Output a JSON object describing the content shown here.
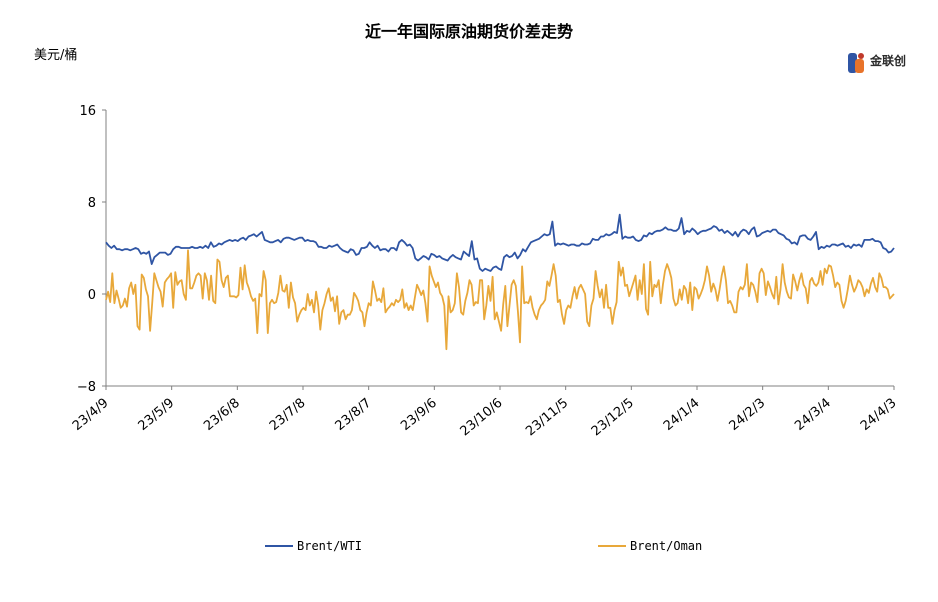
{
  "title": "近一年国际原油期货价差走势",
  "unit": "美元/桶",
  "logo": {
    "name": "金联创"
  },
  "chart_data": {
    "type": "line",
    "title": "近一年国际原油期货价差走势",
    "ylabel": "美元/桶",
    "ylim": [
      -8,
      16
    ],
    "yticks": [
      -8,
      0,
      8,
      16
    ],
    "xticks": [
      "23/4/9",
      "23/5/9",
      "23/6/8",
      "23/7/8",
      "23/8/7",
      "23/9/6",
      "23/10/6",
      "23/11/5",
      "23/12/5",
      "24/1/4",
      "24/2/3",
      "24/3/4",
      "24/4/3"
    ],
    "legend_position": "bottom",
    "grid": false,
    "series": [
      {
        "name": "Brent/WTI",
        "color": "#2f55a4",
        "values": [
          4.5,
          4.2,
          4.0,
          4.2,
          3.9,
          3.9,
          3.8,
          3.9,
          3.9,
          3.8,
          3.9,
          4.0,
          3.9,
          3.5,
          3.6,
          3.5,
          3.7,
          2.6,
          3.2,
          3.4,
          3.6,
          3.6,
          3.6,
          3.4,
          3.5,
          3.9,
          4.1,
          4.1,
          4.0,
          4.0,
          4.0,
          4.0,
          4.1,
          4.0,
          4.0,
          4.1,
          4.0,
          4.2,
          4.0,
          4.5,
          4.1,
          4.2,
          4.4,
          4.3,
          4.5,
          4.6,
          4.7,
          4.6,
          4.7,
          4.6,
          4.8,
          4.9,
          4.7,
          5.0,
          5.1,
          5.2,
          5.0,
          5.2,
          5.4,
          4.7,
          4.6,
          4.5,
          4.5,
          4.6,
          4.7,
          4.5,
          4.8,
          4.9,
          4.9,
          4.8,
          4.7,
          4.8,
          4.9,
          4.9,
          4.6,
          4.7,
          4.6,
          4.6,
          4.5,
          4.1,
          4.1,
          4.0,
          4.0,
          4.2,
          4.1,
          4.2,
          4.3,
          4.0,
          3.8,
          3.7,
          3.6,
          3.9,
          3.8,
          3.4,
          3.5,
          4.0,
          4.0,
          4.1,
          4.5,
          4.2,
          4.0,
          4.2,
          3.8,
          3.9,
          3.9,
          3.7,
          4.0,
          4.0,
          3.8,
          4.5,
          4.7,
          4.5,
          4.2,
          4.3,
          4.0,
          3.1,
          2.9,
          3.1,
          3.3,
          3.2,
          3.0,
          3.5,
          3.4,
          3.2,
          3.3,
          3.1,
          3.0,
          2.9,
          3.2,
          3.4,
          3.2,
          3.1,
          3.0,
          3.7,
          3.5,
          3.3,
          4.6,
          3.0,
          3.1,
          2.2,
          2.0,
          2.2,
          2.1,
          2.0,
          2.3,
          2.4,
          2.2,
          2.1,
          3.2,
          3.4,
          3.2,
          3.3,
          3.6,
          3.1,
          3.4,
          3.9,
          3.7,
          4.1,
          4.5,
          4.6,
          4.7,
          4.8,
          5.0,
          5.2,
          5.1,
          5.2,
          6.3,
          4.2,
          4.4,
          4.3,
          4.4,
          4.3,
          4.2,
          4.3,
          4.3,
          4.2,
          4.2,
          4.4,
          4.3,
          4.3,
          4.4,
          4.8,
          4.7,
          4.7,
          5.0,
          5.0,
          5.2,
          5.1,
          5.2,
          5.4,
          5.3,
          6.9,
          4.8,
          5.0,
          4.9,
          4.9,
          5.0,
          4.7,
          4.6,
          4.7,
          5.1,
          5.0,
          5.3,
          5.2,
          5.4,
          5.5,
          5.5,
          5.6,
          5.8,
          5.6,
          5.6,
          5.5,
          5.5,
          5.7,
          6.6,
          5.2,
          5.5,
          5.4,
          5.7,
          5.5,
          5.2,
          5.4,
          5.5,
          5.5,
          5.6,
          5.7,
          5.9,
          5.8,
          5.5,
          5.6,
          5.3,
          5.5,
          5.3,
          5.1,
          5.4,
          5.0,
          5.4,
          5.6,
          5.5,
          5.2,
          5.6,
          5.8,
          5.0,
          5.1,
          5.3,
          5.4,
          5.5,
          5.4,
          5.6,
          5.6,
          5.3,
          5.2,
          5.1,
          4.8,
          4.7,
          4.4,
          4.5,
          4.3,
          5.0,
          5.1,
          5.1,
          4.8,
          4.7,
          5.0,
          5.4,
          3.9,
          4.1,
          4.0,
          4.2,
          4.1,
          4.3,
          4.3,
          4.2,
          4.3,
          4.4,
          4.1,
          4.2,
          4.0,
          4.3,
          4.2,
          4.3,
          4.1,
          4.7,
          4.7,
          4.7,
          4.8,
          4.6,
          4.6,
          4.5,
          4.0,
          3.9,
          3.6,
          3.7,
          4.0
        ]
      },
      {
        "name": "Brent/Oman",
        "color": "#e8a83a",
        "values": [
          -0.5,
          0.2,
          -0.7,
          1.8,
          -0.8,
          0.3,
          -0.4,
          -1.2,
          -1.0,
          -0.4,
          -1.1,
          0.5,
          1.0,
          0.0,
          0.8,
          -2.8,
          -3.1,
          1.7,
          1.4,
          0.4,
          -0.2,
          -3.2,
          -0.8,
          1.8,
          1.2,
          0.6,
          0.2,
          -1.1,
          1.0,
          1.3,
          1.5,
          1.8,
          -1.2,
          1.9,
          0.8,
          1.1,
          1.2,
          0.0,
          -0.5,
          3.8,
          0.5,
          0.5,
          1.0,
          1.6,
          1.8,
          1.6,
          -0.4,
          1.8,
          1.2,
          -0.5,
          1.6,
          -0.6,
          -0.8,
          3.0,
          2.8,
          1.2,
          0.6,
          1.4,
          1.6,
          -0.2,
          -0.2,
          -0.2,
          -0.3,
          -0.1,
          2.3,
          0.4,
          2.5,
          1.0,
          0.5,
          -0.2,
          -0.6,
          -0.4,
          -3.4,
          0.0,
          -0.2,
          2.0,
          1.2,
          -3.4,
          -0.8,
          -0.5,
          -0.8,
          -0.7,
          0.1,
          1.6,
          0.3,
          0.2,
          0.8,
          -1.2,
          1.0,
          -0.3,
          -0.8,
          -2.4,
          -1.8,
          -1.4,
          -1.2,
          -1.4,
          0.0,
          -1.0,
          -0.5,
          -1.6,
          0.2,
          -1.0,
          -3.1,
          -1.4,
          -0.8,
          0.0,
          0.5,
          -0.6,
          -0.3,
          -1.5,
          -0.2,
          -2.6,
          -1.6,
          -1.4,
          -2.2,
          -1.8,
          -1.8,
          -1.4,
          0.1,
          -0.2,
          -0.6,
          -1.4,
          -1.6,
          -2.8,
          -1.6,
          -0.8,
          -1.0,
          1.1,
          0.3,
          -0.6,
          -0.4,
          -0.7,
          0.5,
          -1.6,
          -1.3,
          -1.1,
          -0.8,
          -1.0,
          -0.5,
          -0.7,
          -0.5,
          0.4,
          -1.2,
          -0.8,
          -1.4,
          -1.0,
          -1.4,
          -0.3,
          0.8,
          0.4,
          -0.1,
          0.3,
          -0.8,
          -2.4,
          2.4,
          1.6,
          1.1,
          0.6,
          1.0,
          0.1,
          -0.2,
          -1.0,
          -4.8,
          -0.2,
          -1.6,
          -1.4,
          -0.8,
          1.8,
          0.6,
          -1.6,
          -1.8,
          -0.6,
          0.1,
          1.2,
          0.8,
          -1.0,
          -0.7,
          -0.8,
          1.2,
          1.2,
          -2.2,
          -1.0,
          0.7,
          -0.6,
          1.5,
          -2.2,
          -1.6,
          -2.4,
          -3.2,
          -0.9,
          0.7,
          -2.8,
          -1.0,
          0.8,
          1.2,
          0.7,
          -1.5,
          -4.2,
          2.4,
          -0.8,
          -0.7,
          -0.8,
          -0.2,
          -1.2,
          -1.8,
          -2.2,
          -1.4,
          -1.0,
          -0.8,
          -0.5,
          1.1,
          0.7,
          1.6,
          2.6,
          1.6,
          -0.7,
          -0.5,
          -1.8,
          -2.6,
          -1.4,
          -1.0,
          -1.2,
          -0.2,
          0.6,
          -0.4,
          0.5,
          0.8,
          0.4,
          0.0,
          -2.4,
          -2.8,
          -1.0,
          -0.4,
          2.0,
          0.7,
          -0.3,
          0.4,
          -1.2,
          0.8,
          -1.2,
          -1.2,
          -2.6,
          -1.4,
          -0.7,
          2.8,
          1.6,
          2.3,
          0.7,
          0.8,
          -0.2,
          0.4,
          1.0,
          1.6,
          -0.5,
          1.2,
          0.0,
          2.6,
          -1.3,
          -1.8,
          2.8,
          -0.2,
          0.8,
          0.6,
          1.2,
          -0.8,
          0.8,
          2.0,
          2.6,
          2.1,
          1.4,
          -0.4,
          -1.0,
          -0.8,
          0.4,
          -0.5,
          0.7,
          0.4,
          -0.8,
          1.0,
          -1.4,
          0.6,
          0.4,
          -0.4,
          0.0,
          0.5,
          1.2,
          2.4,
          1.6,
          0.2,
          0.9,
          0.4,
          -0.6,
          0.4,
          1.6,
          2.4,
          1.2,
          -0.8,
          -0.6,
          -1.0,
          -1.6,
          -1.6,
          0.2,
          0.6,
          0.4,
          0.8,
          2.6,
          -0.2,
          1.0,
          0.8,
          0.2,
          -0.7,
          1.8,
          2.2,
          1.8,
          -0.1,
          1.1,
          0.6,
          0.0,
          -0.4,
          1.5,
          -0.9,
          0.4,
          2.6,
          1.0,
          0.2,
          -0.3,
          -0.4,
          1.7,
          1.1,
          0.3,
          1.2,
          1.8,
          0.8,
          0.5,
          -0.8,
          1.1,
          1.4,
          0.9,
          0.7,
          1.0,
          2.0,
          0.8,
          2.2,
          1.8,
          2.5,
          2.4,
          1.6,
          0.6,
          1.0,
          0.8,
          -0.6,
          -1.2,
          -0.6,
          0.4,
          1.6,
          0.8,
          0.2,
          0.6,
          1.2,
          1.0,
          0.6,
          -0.2,
          0.4,
          0.1,
          0.9,
          1.4,
          0.6,
          0.2,
          1.8,
          1.4,
          0.6,
          0.6,
          0.4,
          -0.4,
          -0.2,
          0.0
        ]
      }
    ]
  }
}
